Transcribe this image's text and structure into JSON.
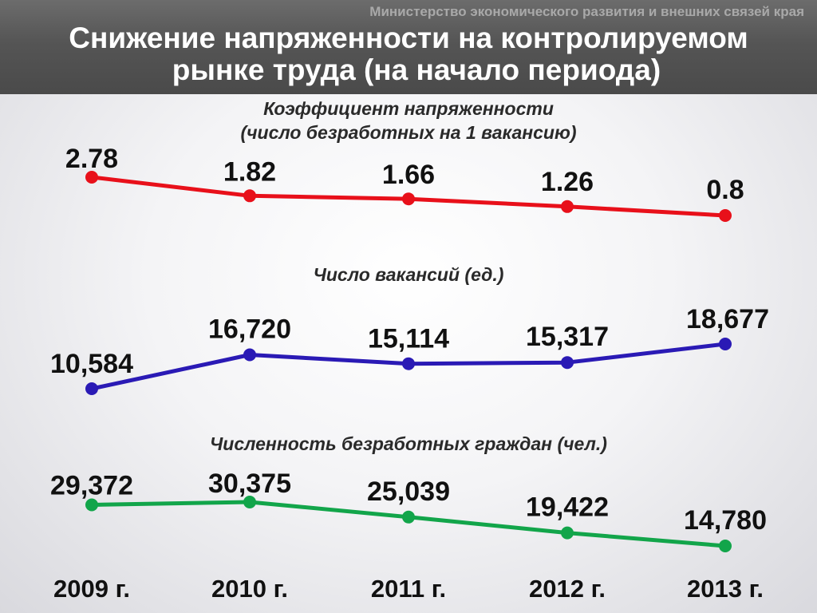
{
  "header": {
    "ministry": "Министерство экономического развития и внешних связей края",
    "title_line1": "Снижение напряженности на контролируемом",
    "title_line2": "рынке труда (на начало периода)"
  },
  "colors": {
    "tension": "#e8101a",
    "vacancies": "#2a1ab5",
    "unemployed": "#12a54a"
  },
  "chart_data": [
    {
      "type": "line",
      "title_line1": "Коэффициент напряженности",
      "title_line2": "(число безработных на 1 вакансию)",
      "categories": [
        "2009 г.",
        "2010 г.",
        "2011 г.",
        "2012 г.",
        "2013 г."
      ],
      "values": [
        2.78,
        1.82,
        1.66,
        1.26,
        0.8
      ],
      "labels": [
        "2.78",
        "1.82",
        "1.66",
        "1.26",
        "0.8"
      ]
    },
    {
      "type": "line",
      "title_line1": "Число вакансий (ед.)",
      "categories": [
        "2009 г.",
        "2010 г.",
        "2011 г.",
        "2012 г.",
        "2013 г."
      ],
      "values": [
        10584,
        16720,
        15114,
        15317,
        18677
      ],
      "labels": [
        "10,584",
        "16,720",
        "15,114",
        "15,317",
        "18,677"
      ]
    },
    {
      "type": "line",
      "title_line1": "Численность безработных граждан (чел.)",
      "categories": [
        "2009 г.",
        "2010 г.",
        "2011 г.",
        "2012 г.",
        "2013 г."
      ],
      "values": [
        29372,
        30375,
        25039,
        19422,
        14780
      ],
      "labels": [
        "29,372",
        "30,375",
        "25,039",
        "19,422",
        "14,780"
      ]
    }
  ]
}
